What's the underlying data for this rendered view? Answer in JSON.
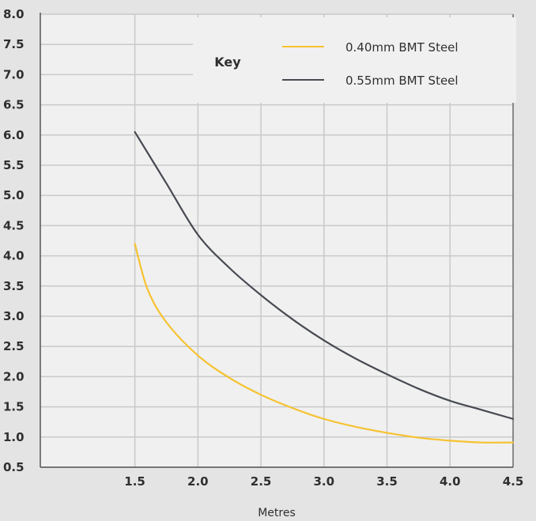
{
  "chart_data": {
    "type": "line",
    "xlabel": "Metres",
    "ylabel": "",
    "title": "",
    "xlim": [
      0.75,
      4.5
    ],
    "ylim": [
      0.5,
      8.0
    ],
    "x_ticks": [
      "1.5",
      "2.0",
      "2.5",
      "3.0",
      "3.5",
      "4.0",
      "4.5"
    ],
    "x_tick_values": [
      1.5,
      2.0,
      2.5,
      3.0,
      3.5,
      4.0,
      4.5
    ],
    "y_ticks": [
      "0.5",
      "1.0",
      "1.5",
      "2.0",
      "2.5",
      "3.0",
      "3.5",
      "4.0",
      "4.5",
      "5.0",
      "5.5",
      "6.0",
      "6.5",
      "7.0",
      "7.5",
      "8.0"
    ],
    "y_tick_values": [
      0.5,
      1.0,
      1.5,
      2.0,
      2.5,
      3.0,
      3.5,
      4.0,
      4.5,
      5.0,
      5.5,
      6.0,
      6.5,
      7.0,
      7.5,
      8.0
    ],
    "grid": true,
    "legend": {
      "title": "Key",
      "placement": "top-right"
    },
    "series": [
      {
        "name": "0.40mm BMT Steel",
        "color": "#f6c230",
        "x": [
          1.5,
          1.6,
          1.75,
          2.0,
          2.25,
          2.5,
          2.75,
          3.0,
          3.25,
          3.5,
          3.75,
          4.0,
          4.25,
          4.5
        ],
        "y": [
          4.2,
          3.45,
          2.9,
          2.35,
          1.98,
          1.7,
          1.48,
          1.3,
          1.17,
          1.07,
          0.99,
          0.94,
          0.91,
          0.91
        ]
      },
      {
        "name": "0.55mm BMT Steel",
        "color": "#474a52",
        "x": [
          1.5,
          1.75,
          2.0,
          2.25,
          2.5,
          2.75,
          3.0,
          3.25,
          3.5,
          3.75,
          4.0,
          4.25,
          4.5
        ],
        "y": [
          6.05,
          5.2,
          4.35,
          3.8,
          3.35,
          2.95,
          2.6,
          2.3,
          2.04,
          1.8,
          1.6,
          1.45,
          1.3
        ]
      }
    ]
  }
}
